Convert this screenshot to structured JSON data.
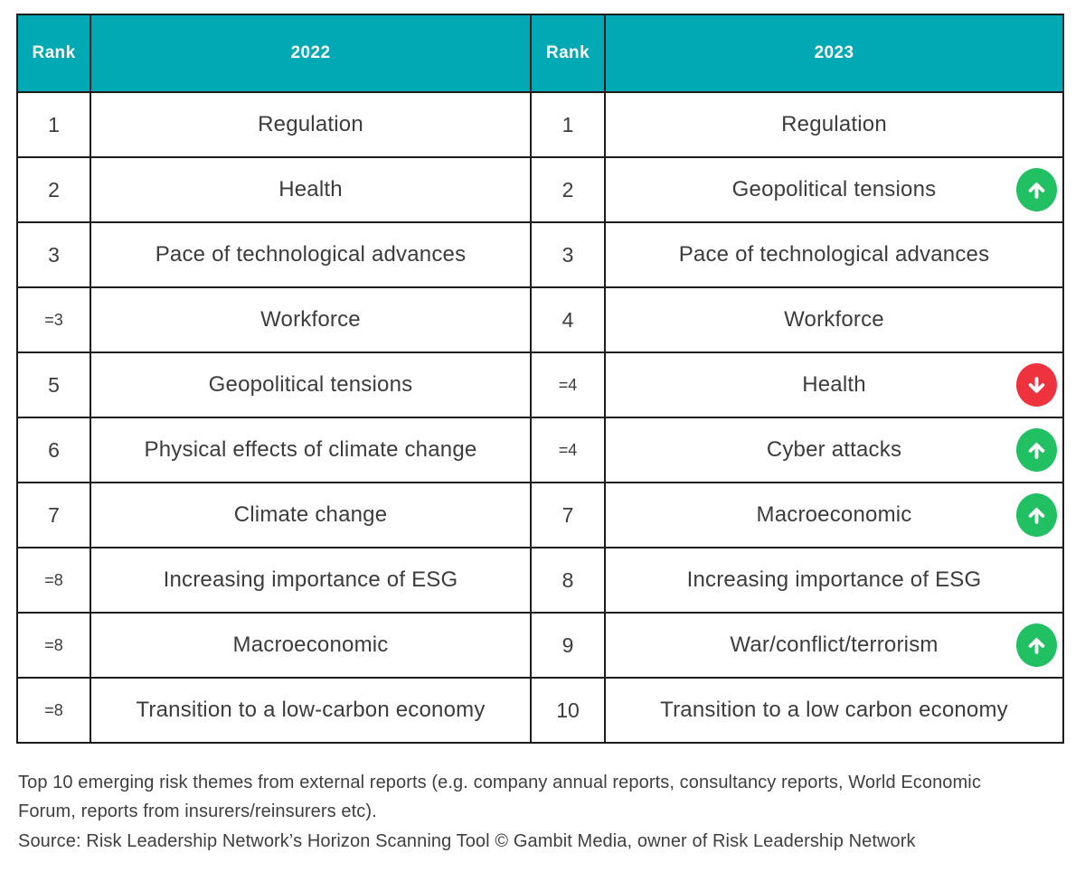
{
  "chart_data": {
    "type": "table",
    "title": "Top 10 emerging risk themes from external reports, 2022 vs 2023",
    "columns": [
      "Rank",
      "2022",
      "Rank",
      "2023"
    ],
    "rows": [
      {
        "rank_2022": "1",
        "theme_2022": "Regulation",
        "rank_2023": "1",
        "theme_2023": "Regulation",
        "change_2023": null
      },
      {
        "rank_2022": "2",
        "theme_2022": "Health",
        "rank_2023": "2",
        "theme_2023": "Geopolitical tensions",
        "change_2023": "up"
      },
      {
        "rank_2022": "3",
        "theme_2022": "Pace of technological advances",
        "rank_2023": "3",
        "theme_2023": "Pace of technological advances",
        "change_2023": null
      },
      {
        "rank_2022": "=3",
        "theme_2022": "Workforce",
        "rank_2023": "4",
        "theme_2023": "Workforce",
        "change_2023": null
      },
      {
        "rank_2022": "5",
        "theme_2022": "Geopolitical tensions",
        "rank_2023": "=4",
        "theme_2023": "Health",
        "change_2023": "down"
      },
      {
        "rank_2022": "6",
        "theme_2022": "Physical effects of climate change",
        "rank_2023": "=4",
        "theme_2023": "Cyber attacks",
        "change_2023": "up"
      },
      {
        "rank_2022": "7",
        "theme_2022": "Climate change",
        "rank_2023": "7",
        "theme_2023": "Macroeconomic",
        "change_2023": "up"
      },
      {
        "rank_2022": "=8",
        "theme_2022": "Increasing importance of ESG",
        "rank_2023": "8",
        "theme_2023": "Increasing importance of ESG",
        "change_2023": null
      },
      {
        "rank_2022": "=8",
        "theme_2022": "Macroeconomic",
        "rank_2023": "9",
        "theme_2023": "War/conflict/terrorism",
        "change_2023": "up"
      },
      {
        "rank_2022": "=8",
        "theme_2022": "Transition to a low-carbon economy",
        "rank_2023": "10",
        "theme_2023": "Transition to a low carbon economy",
        "change_2023": null
      }
    ],
    "legend": {
      "up_arrow": "risen in rank vs 2022",
      "down_arrow": "fallen in rank vs 2022"
    }
  },
  "footer": {
    "caption": "Top 10 emerging risk themes from external reports (e.g. company annual reports, consultancy reports, World Economic Forum, reports from insurers/reinsurers etc).",
    "source": "Source: Risk Leadership Network’s Horizon Scanning Tool © Gambit Media, owner of Risk Leadership Network"
  },
  "colors": {
    "header_bg": "#00a9b4",
    "header_text": "#ffffff",
    "border": "#1c1c1c",
    "body_text": "#3c3c3c",
    "up_arrow": "#21c063",
    "down_arrow": "#ef333e"
  }
}
